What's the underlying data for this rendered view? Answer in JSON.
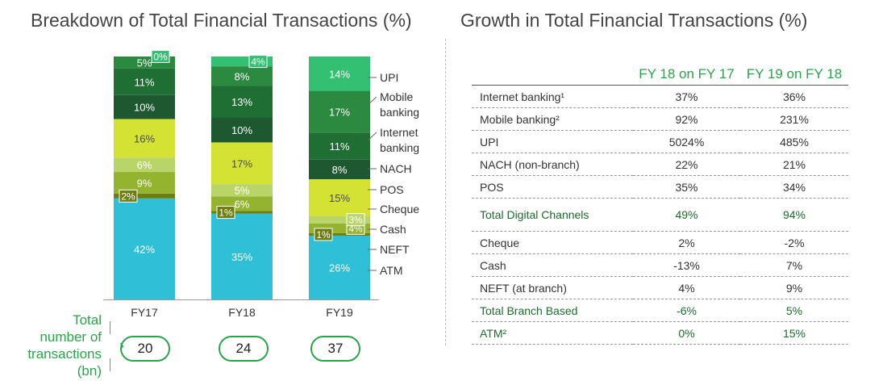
{
  "left_title": "Breakdown of Total Financial Transactions (%)",
  "right_title": "Growth in Total Financial Transactions (%)",
  "chart_data": {
    "type": "bar",
    "stacked": true,
    "title": "Breakdown of Total Financial Transactions (%)",
    "categories": [
      "FY17",
      "FY18",
      "FY19"
    ],
    "series": [
      {
        "name": "ATM",
        "values": [
          42,
          35,
          26
        ],
        "labels": [
          "42%",
          "35%",
          "26%"
        ],
        "color": "#2fbfd6",
        "text": "#ffffff"
      },
      {
        "name": "NEFT",
        "values": [
          2,
          1,
          1
        ],
        "labels": [
          "2%",
          "1%",
          "1%"
        ],
        "color": "#6e7d12",
        "text": "#ffffff"
      },
      {
        "name": "Cash",
        "values": [
          9,
          6,
          4
        ],
        "labels": [
          "9%",
          "6%",
          "4%"
        ],
        "color": "#94b430",
        "text": "#ffffff"
      },
      {
        "name": "Cheque",
        "values": [
          6,
          5,
          3
        ],
        "labels": [
          "6%",
          "5%",
          "3%"
        ],
        "color": "#b9d468",
        "text": "#ffffff"
      },
      {
        "name": "POS",
        "values": [
          16,
          17,
          15
        ],
        "labels": [
          "16%",
          "17%",
          "15%"
        ],
        "color": "#d4e233",
        "text": "#4a4a4a"
      },
      {
        "name": "NACH",
        "values": [
          10,
          10,
          8
        ],
        "labels": [
          "10%",
          "10%",
          "8%"
        ],
        "color": "#1d5830",
        "text": "#ffffff"
      },
      {
        "name": "Internet banking",
        "values": [
          11,
          13,
          11
        ],
        "labels": [
          "11%",
          "13%",
          "11%"
        ],
        "color": "#1f6e33",
        "text": "#ffffff"
      },
      {
        "name": "Mobile banking",
        "values": [
          5,
          8,
          17
        ],
        "labels": [
          "5%",
          "8%",
          "17%"
        ],
        "color": "#2b8a3f",
        "text": "#ffffff"
      },
      {
        "name": "UPI",
        "values": [
          0,
          4,
          14
        ],
        "labels": [
          "0%",
          "4%",
          "14%"
        ],
        "color": "#33c072",
        "text": "#ffffff"
      }
    ],
    "legend_lines": [
      [
        "UPI"
      ],
      [
        "Mobile",
        "banking"
      ],
      [
        "Internet",
        "banking"
      ],
      [
        "NACH"
      ],
      [
        "POS"
      ],
      [
        "Cheque"
      ],
      [
        "Cash"
      ],
      [
        "NEFT"
      ],
      [
        "ATM"
      ]
    ],
    "totals": {
      "label_lines": [
        "Total",
        "number of",
        "transactions",
        "(bn)"
      ],
      "values": [
        "20",
        "24",
        "37"
      ]
    }
  },
  "table": {
    "headers": [
      "",
      "FY 18 on FY 17",
      "FY 19 on FY 18"
    ],
    "rows": [
      {
        "label": "Internet banking¹",
        "fy18": "37%",
        "fy19": "36%"
      },
      {
        "label": "Mobile banking²",
        "fy18": "92%",
        "fy19": "231%"
      },
      {
        "label": "UPI",
        "fy18": "5024%",
        "fy19": "485%"
      },
      {
        "label": "NACH (non-branch)",
        "fy18": "22%",
        "fy19": "21%"
      },
      {
        "label": "POS",
        "fy18": "35%",
        "fy19": "34%"
      },
      {
        "label": "Total Digital Channels",
        "fy18": "49%",
        "fy19": "94%"
      },
      {
        "label": "Cheque",
        "fy18": "2%",
        "fy19": "-2%"
      },
      {
        "label": "Cash",
        "fy18": "-13%",
        "fy19": "7%"
      },
      {
        "label": "NEFT (at branch)",
        "fy18": "4%",
        "fy19": "9%"
      },
      {
        "label": "Total Branch Based",
        "fy18": "-6%",
        "fy19": "5%"
      },
      {
        "label": "ATM²",
        "fy18": "0%",
        "fy19": "15%"
      }
    ]
  }
}
